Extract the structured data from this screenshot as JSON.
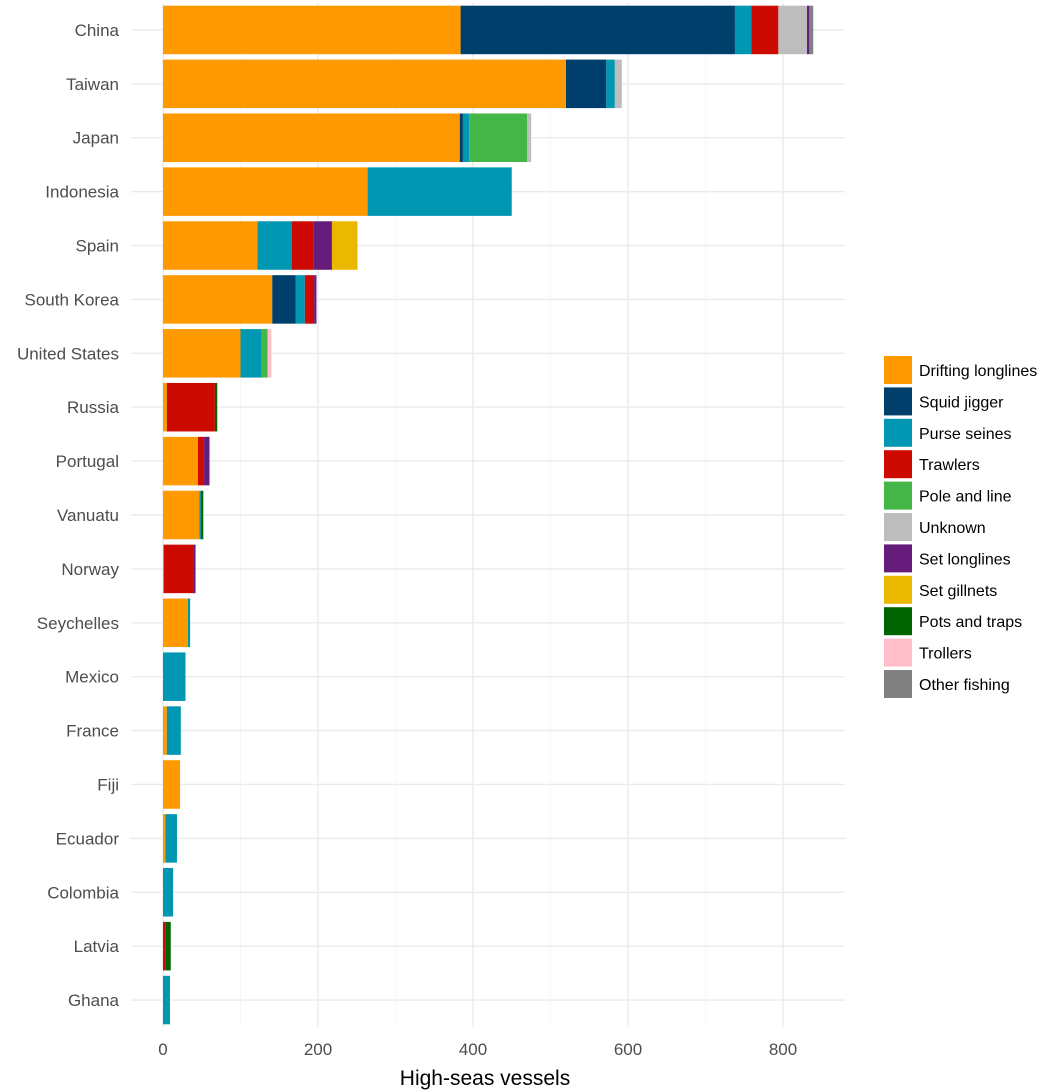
{
  "chart_data": {
    "type": "bar",
    "orientation": "horizontal",
    "stacked": true,
    "title": "",
    "xlabel": "High-seas vessels",
    "ylabel": "",
    "xlim": [
      0,
      880
    ],
    "xticks": [
      0,
      200,
      400,
      600,
      800
    ],
    "grid": true,
    "legend_position": "right",
    "categories": [
      "China",
      "Taiwan",
      "Japan",
      "Indonesia",
      "Spain",
      "South Korea",
      "United States",
      "Russia",
      "Portugal",
      "Vanuatu",
      "Norway",
      "Seychelles",
      "Mexico",
      "France",
      "Fiji",
      "Ecuador",
      "Colombia",
      "Latvia",
      "Ghana"
    ],
    "series": [
      {
        "name": "Drifting longlines",
        "color": "#FF9900",
        "values": [
          384,
          520,
          383,
          264,
          122,
          141,
          100,
          5,
          45,
          47,
          1,
          32,
          0,
          5,
          22,
          3,
          0,
          0,
          0
        ]
      },
      {
        "name": "Squid jigger",
        "color": "#003F6C",
        "values": [
          354,
          52,
          4,
          0,
          0,
          30,
          0,
          0,
          0,
          0,
          0,
          0,
          0,
          0,
          0,
          0,
          0,
          0,
          0
        ]
      },
      {
        "name": "Purse seines",
        "color": "#0097B2",
        "values": [
          21,
          11,
          8,
          186,
          44,
          12,
          27,
          0,
          0,
          2,
          0,
          3,
          29,
          18,
          0,
          15,
          13,
          0,
          9
        ]
      },
      {
        "name": "Trawlers",
        "color": "#CC0A00",
        "values": [
          35,
          0,
          0,
          0,
          28,
          12,
          0,
          62,
          8,
          0,
          39,
          0,
          0,
          0,
          0,
          0,
          0,
          3,
          0
        ]
      },
      {
        "name": "Pole and line",
        "color": "#44B547",
        "values": [
          0,
          0,
          75,
          0,
          0,
          0,
          8,
          0,
          0,
          0,
          0,
          0,
          0,
          0,
          0,
          0,
          0,
          0,
          0
        ]
      },
      {
        "name": "Unknown",
        "color": "#BDBDBD",
        "values": [
          37,
          9,
          5,
          0,
          0,
          0,
          0,
          0,
          0,
          0,
          0,
          0,
          0,
          0,
          0,
          0,
          0,
          0,
          0
        ]
      },
      {
        "name": "Set longlines",
        "color": "#661C7A",
        "values": [
          3,
          0,
          0,
          0,
          24,
          3,
          0,
          0,
          7,
          0,
          2,
          0,
          0,
          0,
          0,
          0,
          0,
          0,
          0
        ]
      },
      {
        "name": "Set gillnets",
        "color": "#EBB800",
        "values": [
          0,
          0,
          0,
          0,
          33,
          0,
          0,
          0,
          0,
          0,
          0,
          0,
          0,
          0,
          0,
          0,
          0,
          0,
          0
        ]
      },
      {
        "name": "Pots and traps",
        "color": "#006400",
        "values": [
          0,
          0,
          0,
          0,
          0,
          0,
          0,
          3,
          0,
          3,
          0,
          0,
          0,
          0,
          0,
          0,
          0,
          7,
          0
        ]
      },
      {
        "name": "Trollers",
        "color": "#FFC0CB",
        "values": [
          0,
          0,
          0,
          0,
          0,
          0,
          5,
          0,
          0,
          0,
          0,
          0,
          0,
          0,
          0,
          0,
          0,
          0,
          0
        ]
      },
      {
        "name": "Other fishing",
        "color": "#808080",
        "values": [
          5,
          0,
          0,
          0,
          0,
          0,
          0,
          0,
          0,
          0,
          0,
          0,
          0,
          0,
          0,
          0,
          0,
          0,
          0
        ]
      }
    ]
  }
}
